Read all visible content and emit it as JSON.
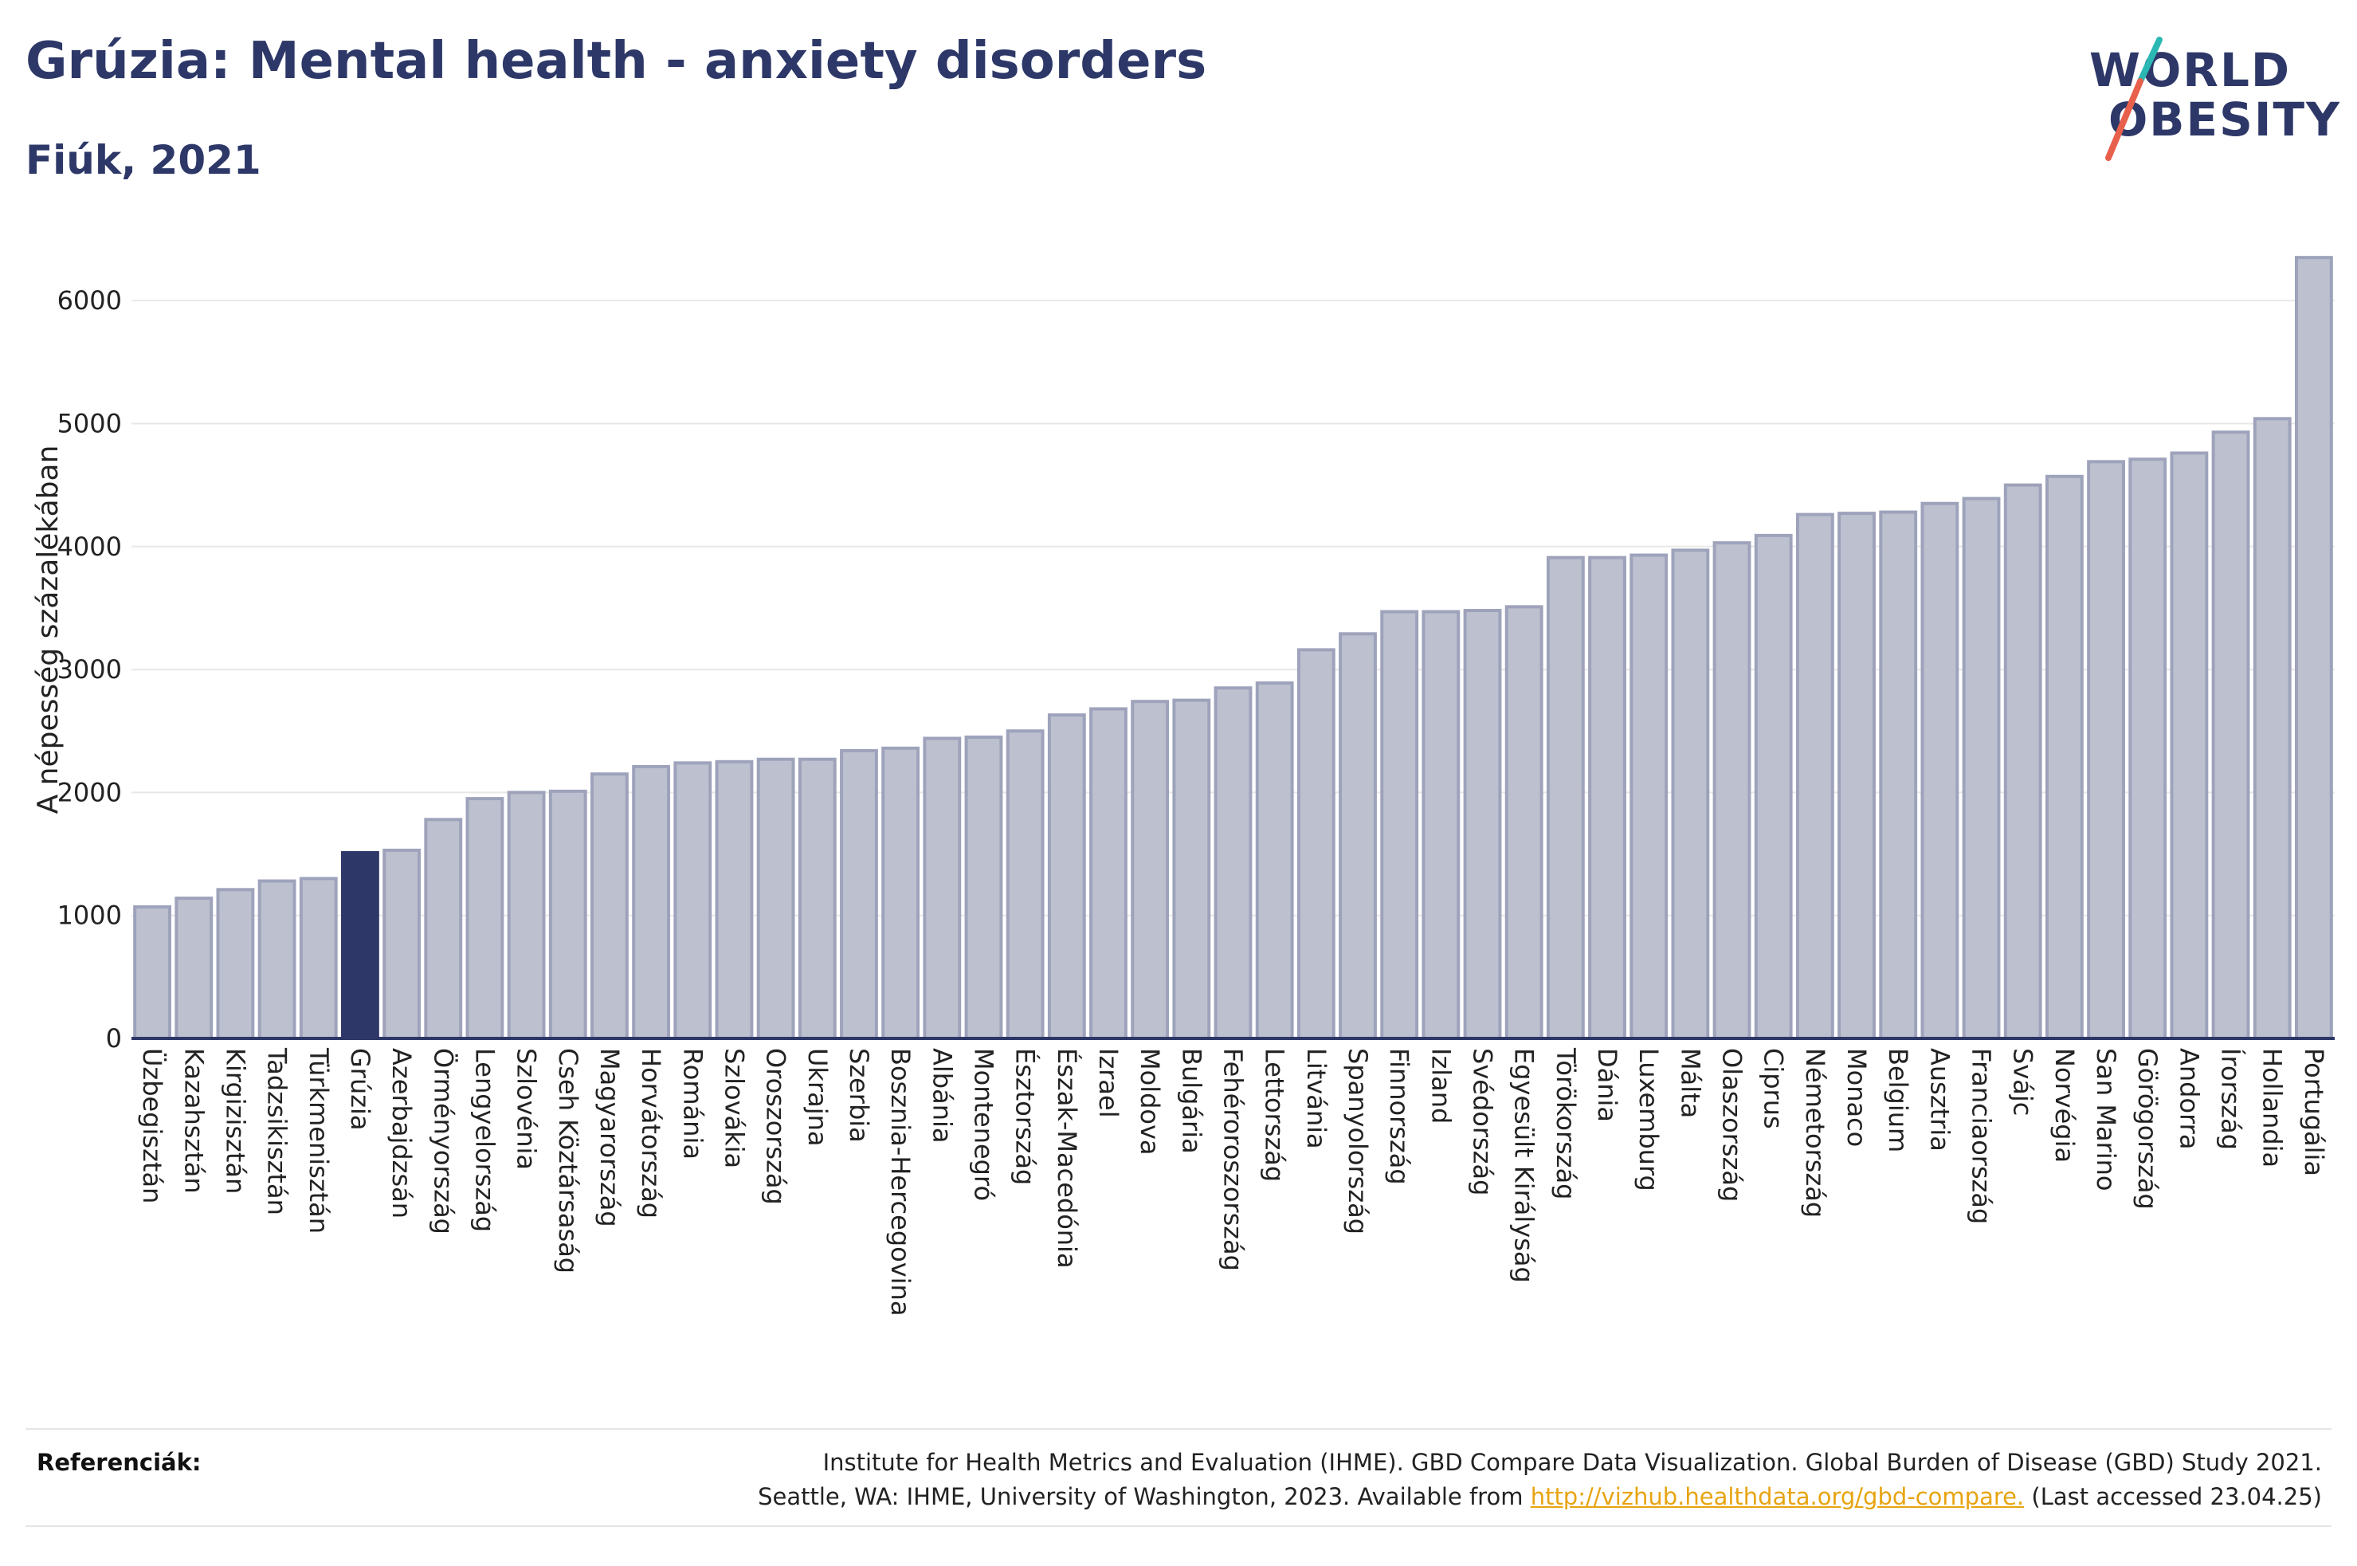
{
  "header": {
    "title": "Grúzia: Mental health - anxiety disorders",
    "subtitle": "Fiúk, 2021"
  },
  "logo": {
    "line1": "WORLD",
    "line2": "OBESITY",
    "colors": {
      "text": "#2d3868",
      "slash_top": "#2bb7b3",
      "slash_bottom": "#e8604c"
    }
  },
  "chart_data": {
    "type": "bar",
    "ylabel": "A népesség százalékában",
    "ylim": [
      0,
      6500
    ],
    "yticks": [
      0,
      1000,
      2000,
      3000,
      4000,
      5000,
      6000
    ],
    "grid": true,
    "highlight": "Grúzia",
    "colors": {
      "bar": "#bcc0cf",
      "bar_border": "#9ea3bb",
      "highlight": "#2d3868",
      "grid": "#e8e8e8",
      "axis": "#2d3868"
    },
    "categories": [
      "Üzbegisztán",
      "Kazahsztán",
      "Kirgizisztán",
      "Tadzsikisztán",
      "Türkmenisztán",
      "Grúzia",
      "Azerbajdzsán",
      "Örményország",
      "Lengyelország",
      "Szlovénia",
      "Cseh Köztársaság",
      "Magyarország",
      "Horvátország",
      "Románia",
      "Szlovákia",
      "Oroszország",
      "Ukrajna",
      "Szerbia",
      "Bosznia-Hercegovina",
      "Albánia",
      "Montenegró",
      "Észtország",
      "Észak-Macedónia",
      "Izrael",
      "Moldova",
      "Bulgária",
      "Fehéroroszország",
      "Lettország",
      "Litvánia",
      "Spanyolország",
      "Finnország",
      "Izland",
      "Svédország",
      "Egyesült Királyság",
      "Törökország",
      "Dánia",
      "Luxemburg",
      "Málta",
      "Olaszország",
      "Ciprus",
      "Németország",
      "Monaco",
      "Belgium",
      "Ausztria",
      "Franciaország",
      "Svájc",
      "Norvégia",
      "San Marino",
      "Görögország",
      "Andorra",
      "Írország",
      "Hollandia",
      "Portugália"
    ],
    "values": [
      1070,
      1140,
      1210,
      1280,
      1300,
      1510,
      1530,
      1780,
      1950,
      2000,
      2010,
      2150,
      2210,
      2240,
      2250,
      2270,
      2270,
      2340,
      2360,
      2440,
      2450,
      2500,
      2630,
      2680,
      2740,
      2750,
      2850,
      2890,
      3160,
      3290,
      3470,
      3470,
      3480,
      3510,
      3910,
      3910,
      3930,
      3970,
      4030,
      4090,
      4260,
      4270,
      4280,
      4350,
      4390,
      4500,
      4570,
      4690,
      4710,
      4760,
      4930,
      5040,
      6350
    ]
  },
  "references": {
    "label": "Referenciák:",
    "line1": "Institute for Health Metrics and Evaluation (IHME). GBD Compare Data Visualization. Global Burden of Disease (GBD) Study 2021.",
    "line2_prefix": "Seattle, WA: IHME, University of Washington, 2023. Available from ",
    "link": "http://vizhub.healthdata.org/gbd-compare.",
    "line2_suffix": " (Last accessed 23.04.25)"
  }
}
